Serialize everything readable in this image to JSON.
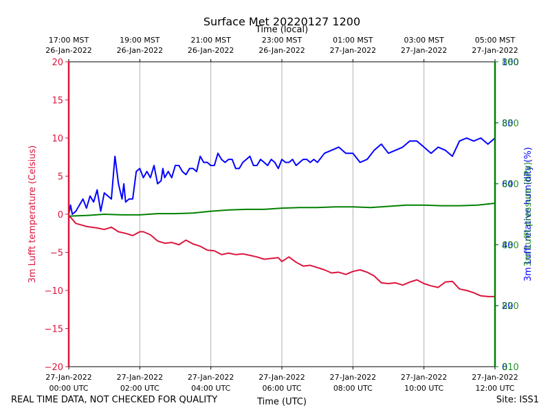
{
  "chart_data": {
    "type": "line",
    "title": "Surface Met 20220127 1200",
    "top_axis_label": "Time (local)",
    "xlabel": "Time (UTC)",
    "top_ticks": [
      {
        "t": 0,
        "line1": "17:00 MST",
        "line2": "26-Jan-2022"
      },
      {
        "t": 2,
        "line1": "19:00 MST",
        "line2": "26-Jan-2022"
      },
      {
        "t": 4,
        "line1": "21:00 MST",
        "line2": "26-Jan-2022"
      },
      {
        "t": 6,
        "line1": "23:00 MST",
        "line2": "26-Jan-2022"
      },
      {
        "t": 8,
        "line1": "01:00 MST",
        "line2": "27-Jan-2022"
      },
      {
        "t": 10,
        "line1": "03:00 MST",
        "line2": "27-Jan-2022"
      },
      {
        "t": 12,
        "line1": "05:00 MST",
        "line2": "27-Jan-2022"
      }
    ],
    "bottom_ticks": [
      {
        "t": 0,
        "line1": "27-Jan-2022",
        "line2": "00:00 UTC"
      },
      {
        "t": 2,
        "line1": "27-Jan-2022",
        "line2": "02:00 UTC"
      },
      {
        "t": 4,
        "line1": "27-Jan-2022",
        "line2": "04:00 UTC"
      },
      {
        "t": 6,
        "line1": "27-Jan-2022",
        "line2": "06:00 UTC"
      },
      {
        "t": 8,
        "line1": "27-Jan-2022",
        "line2": "08:00 UTC"
      },
      {
        "t": 10,
        "line1": "27-Jan-2022",
        "line2": "10:00 UTC"
      },
      {
        "t": 12,
        "line1": "27-Jan-2022",
        "line2": "12:00 UTC"
      }
    ],
    "xlim": [
      0,
      12
    ],
    "left_axis": {
      "label": "3m Lufft temperature (Celsius)",
      "color": "#dc143c",
      "ylim": [
        -20,
        20
      ],
      "ticks": [
        {
          "v": -20,
          "label": "−20"
        },
        {
          "v": -15,
          "label": "−15"
        },
        {
          "v": -10,
          "label": "−10"
        },
        {
          "v": -5,
          "label": "−5"
        },
        {
          "v": 0,
          "label": "0"
        },
        {
          "v": 5,
          "label": "5"
        },
        {
          "v": 10,
          "label": "10"
        },
        {
          "v": 15,
          "label": "15"
        },
        {
          "v": 20,
          "label": "20"
        }
      ]
    },
    "right_axis_a": {
      "label": "3m Lufft relative humidity (%)",
      "color": "#0000ff",
      "ylim": [
        0,
        100
      ],
      "ticks": [
        {
          "v": 0,
          "label": "0"
        },
        {
          "v": 20,
          "label": "20"
        },
        {
          "v": 40,
          "label": "40"
        },
        {
          "v": 60,
          "label": "60"
        },
        {
          "v": 80,
          "label": "80"
        },
        {
          "v": 100,
          "label": "100"
        }
      ]
    },
    "right_axis_b": {
      "label": "3m Lufft pressure (hPa)",
      "color": "#008000",
      "ylim": [
        810,
        860
      ],
      "ticks": [
        {
          "v": 810,
          "label": "810"
        },
        {
          "v": 820,
          "label": "820"
        },
        {
          "v": 830,
          "label": "830"
        },
        {
          "v": 840,
          "label": "840"
        },
        {
          "v": 850,
          "label": "850"
        },
        {
          "v": 860,
          "label": "860"
        }
      ]
    },
    "series": [
      {
        "name": "3m Lufft temperature",
        "axis": "left",
        "color": "#dc143c",
        "x": [
          0,
          0.05,
          0.2,
          0.5,
          0.8,
          1.0,
          1.2,
          1.4,
          1.6,
          1.8,
          2.0,
          2.1,
          2.3,
          2.5,
          2.7,
          2.9,
          3.1,
          3.3,
          3.5,
          3.7,
          3.9,
          4.1,
          4.3,
          4.5,
          4.7,
          4.9,
          5.1,
          5.3,
          5.5,
          5.7,
          5.9,
          6.0,
          6.2,
          6.4,
          6.6,
          6.8,
          7.0,
          7.2,
          7.4,
          7.6,
          7.8,
          8.0,
          8.2,
          8.4,
          8.6,
          8.8,
          9.0,
          9.2,
          9.4,
          9.6,
          9.8,
          10.0,
          10.2,
          10.4,
          10.6,
          10.8,
          11.0,
          11.2,
          11.4,
          11.6,
          11.8,
          12.0
        ],
        "values": [
          -0.3,
          -0.4,
          -1.2,
          -1.6,
          -1.8,
          -2.0,
          -1.7,
          -2.3,
          -2.5,
          -2.8,
          -2.3,
          -2.3,
          -2.7,
          -3.5,
          -3.8,
          -3.7,
          -4.0,
          -3.4,
          -3.9,
          -4.2,
          -4.7,
          -4.8,
          -5.3,
          -5.1,
          -5.3,
          -5.2,
          -5.4,
          -5.6,
          -5.9,
          -5.8,
          -5.7,
          -6.2,
          -5.6,
          -6.3,
          -6.8,
          -6.7,
          -7.0,
          -7.3,
          -7.7,
          -7.6,
          -7.9,
          -7.5,
          -7.3,
          -7.6,
          -8.1,
          -9.0,
          -9.1,
          -9.0,
          -9.3,
          -8.9,
          -8.6,
          -9.1,
          -9.4,
          -9.6,
          -8.9,
          -8.8,
          -9.8,
          -10.0,
          -10.3,
          -10.7,
          -10.8,
          -10.8
        ]
      },
      {
        "name": "3m Lufft relative humidity",
        "axis": "right_a",
        "color": "#0000ff",
        "x": [
          0,
          0.05,
          0.1,
          0.2,
          0.3,
          0.4,
          0.5,
          0.6,
          0.7,
          0.8,
          0.9,
          1.0,
          1.1,
          1.2,
          1.3,
          1.4,
          1.5,
          1.55,
          1.6,
          1.7,
          1.75,
          1.8,
          1.9,
          2.0,
          2.1,
          2.2,
          2.3,
          2.4,
          2.5,
          2.6,
          2.65,
          2.7,
          2.8,
          2.9,
          3.0,
          3.1,
          3.2,
          3.3,
          3.4,
          3.5,
          3.6,
          3.7,
          3.8,
          3.9,
          4.0,
          4.1,
          4.2,
          4.3,
          4.4,
          4.5,
          4.6,
          4.7,
          4.8,
          4.9,
          5.0,
          5.1,
          5.2,
          5.3,
          5.4,
          5.5,
          5.6,
          5.7,
          5.8,
          5.9,
          6.0,
          6.1,
          6.2,
          6.3,
          6.4,
          6.5,
          6.6,
          6.7,
          6.8,
          6.9,
          7.0,
          7.2,
          7.4,
          7.6,
          7.8,
          8.0,
          8.2,
          8.4,
          8.6,
          8.8,
          9.0,
          9.2,
          9.4,
          9.6,
          9.8,
          10.0,
          10.2,
          10.4,
          10.6,
          10.8,
          11.0,
          11.2,
          11.4,
          11.6,
          11.8,
          12.0
        ],
        "values": [
          50,
          53,
          50,
          51,
          53,
          55,
          52,
          56,
          54,
          58,
          51,
          57,
          56,
          55,
          69,
          60,
          55,
          60,
          54,
          55,
          55,
          55,
          64,
          65,
          62,
          64,
          62,
          66,
          60,
          61,
          65,
          62,
          64,
          62,
          66,
          66,
          64,
          63,
          65,
          65,
          64,
          69,
          67,
          67,
          66,
          66,
          70,
          68,
          67,
          68,
          68,
          65,
          65,
          67,
          68,
          69,
          66,
          66,
          68,
          67,
          66,
          68,
          67,
          65,
          68,
          67,
          67,
          68,
          66,
          67,
          68,
          68,
          67,
          68,
          67,
          70,
          71,
          72,
          70,
          70,
          67,
          68,
          71,
          73,
          70,
          71,
          72,
          74,
          74,
          72,
          70,
          72,
          71,
          69,
          74,
          75,
          74,
          75,
          73,
          75
        ]
      },
      {
        "name": "3m Lufft pressure",
        "axis": "right_b",
        "color": "#008000",
        "x": [
          0,
          0.5,
          1.0,
          1.5,
          2.0,
          2.5,
          3.0,
          3.5,
          4.0,
          4.5,
          5.0,
          5.5,
          6.0,
          6.5,
          7.0,
          7.5,
          8.0,
          8.5,
          9.0,
          9.5,
          10.0,
          10.5,
          11.0,
          11.5,
          12.0
        ],
        "values": [
          834.7,
          834.8,
          835.0,
          834.9,
          834.9,
          835.1,
          835.1,
          835.2,
          835.5,
          835.7,
          835.8,
          835.8,
          836.0,
          836.1,
          836.1,
          836.2,
          836.2,
          836.1,
          836.3,
          836.5,
          836.5,
          836.4,
          836.4,
          836.5,
          836.8
        ]
      }
    ]
  },
  "footer": {
    "quality_note": "REAL TIME DATA, NOT CHECKED FOR QUALITY",
    "site": "Site: ISS1"
  }
}
